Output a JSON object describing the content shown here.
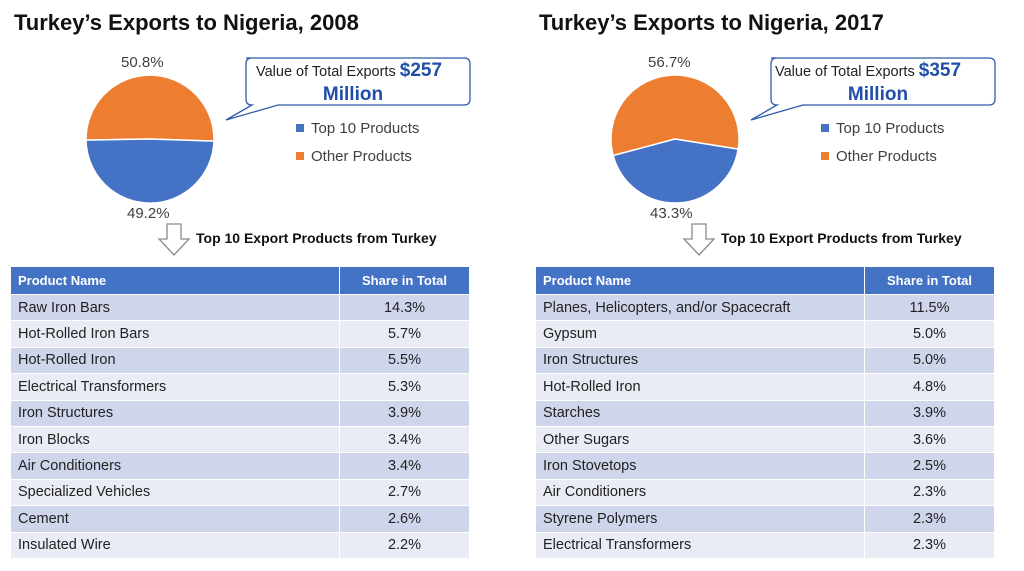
{
  "colors": {
    "top10": "#4472c4",
    "other": "#ed7d31",
    "header_bg": "#4472c4",
    "row_odd": "#cfd5ea",
    "row_even": "#e9ebf5",
    "callout_border": "#2e5aa8",
    "callout_value": "#1f4fa8"
  },
  "table_headers": {
    "product": "Product Name",
    "share": "Share in Total"
  },
  "chart_data": [
    {
      "type": "pie",
      "title": "Turkey’s Exports to Nigeria, 2008",
      "labels": [
        "Other Products",
        "Top 10 Products"
      ],
      "values": [
        50.8,
        49.2
      ],
      "value_labels": [
        "50.8%",
        "49.2%"
      ],
      "legend": [
        "Top 10 Products",
        "Other Products"
      ],
      "callout": {
        "prefix": "Value of Total Exports ",
        "value": "$257",
        "unit": "Million"
      },
      "subtitle": "Top 10 Export Products from Turkey",
      "table": {
        "products": [
          "Raw Iron Bars",
          "Hot-Rolled Iron Bars",
          "Hot-Rolled Iron",
          "Electrical Transformers",
          "Iron Structures",
          "Iron Blocks",
          "Air Conditioners",
          "Specialized Vehicles",
          "Cement",
          "Insulated Wire"
        ],
        "shares": [
          "14.3%",
          "5.7%",
          "5.5%",
          "5.3%",
          "3.9%",
          "3.4%",
          "3.4%",
          "2.7%",
          "2.6%",
          "2.2%"
        ]
      }
    },
    {
      "type": "pie",
      "title": "Turkey’s Exports to Nigeria, 2017",
      "labels": [
        "Other Products",
        "Top 10 Products"
      ],
      "values": [
        56.7,
        43.3
      ],
      "value_labels": [
        "56.7%",
        "43.3%"
      ],
      "legend": [
        "Top 10 Products",
        "Other Products"
      ],
      "callout": {
        "prefix": "Value of Total Exports ",
        "value": "$357",
        "unit": "Million"
      },
      "subtitle": "Top 10 Export Products from Turkey",
      "table": {
        "products": [
          "Planes, Helicopters, and/or Spacecraft",
          "Gypsum",
          "Iron Structures",
          "Hot-Rolled Iron",
          "Starches",
          "Other Sugars",
          "Iron Stovetops",
          "Air Conditioners",
          "Styrene Polymers",
          "Electrical Transformers"
        ],
        "shares": [
          "11.5%",
          "5.0%",
          "5.0%",
          "4.8%",
          "3.9%",
          "3.6%",
          "2.5%",
          "2.3%",
          "2.3%",
          "2.3%"
        ]
      }
    }
  ]
}
